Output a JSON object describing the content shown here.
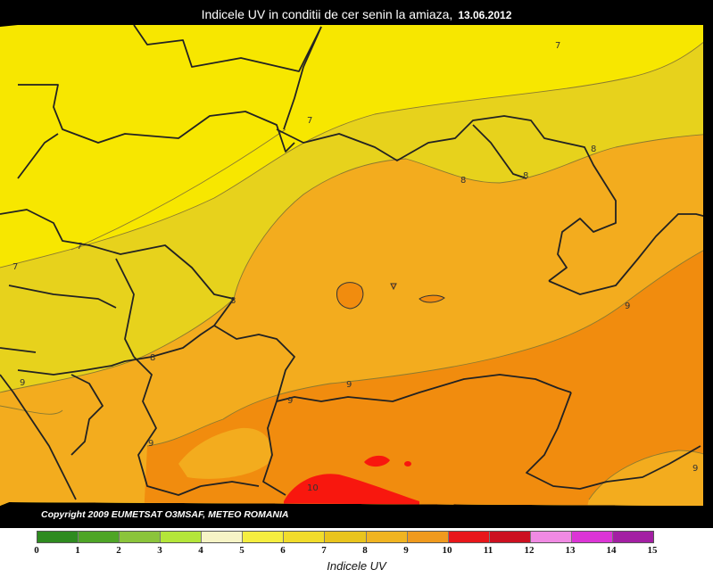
{
  "map": {
    "title_text": "Indicele UV in conditii de cer senin la amiaza,",
    "title_date": "13.06.2012",
    "copyright": "Copyright 2009 EUMETSAT O3MSAF, METEO  ROMANIA",
    "contour_labels": [
      "7",
      "7",
      "7",
      "7",
      "8",
      "8",
      "8",
      "8",
      "8",
      "9",
      "9",
      "9",
      "9",
      "9",
      "9",
      "10"
    ]
  },
  "legend": {
    "label": "Indicele UV",
    "ticks": [
      "0",
      "1",
      "2",
      "3",
      "4",
      "5",
      "6",
      "7",
      "8",
      "9",
      "10",
      "11",
      "12",
      "13",
      "14",
      "15"
    ],
    "colors": [
      "#2e8b1f",
      "#4ea526",
      "#8bc43b",
      "#b4e63a",
      "#f7f4c6",
      "#f5ee40",
      "#f1dc2c",
      "#e9c41d",
      "#f0b421",
      "#ef9a1e",
      "#e8161a",
      "#cc1020",
      "#f08ae3",
      "#dc35d6",
      "#a31fa3"
    ]
  },
  "colors": {
    "zone_7": "#f7e700",
    "zone_7_8": "#e7d21c",
    "zone_8_9": "#f3ac1e",
    "zone_9_10": "#f18c0e",
    "zone_10_11": "#f8170e",
    "border": "#222222"
  }
}
